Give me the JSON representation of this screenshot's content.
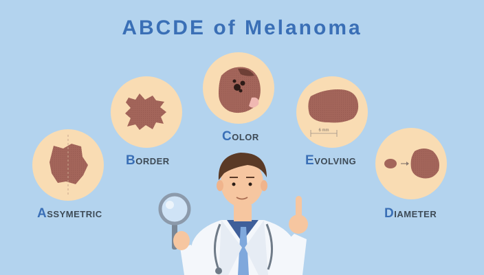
{
  "title": "ABCDE of Melanoma",
  "items": [
    {
      "letter": "A",
      "rest": "SSYMETRIC"
    },
    {
      "letter": "B",
      "rest": "ORDER"
    },
    {
      "letter": "C",
      "rest": "OLOR"
    },
    {
      "letter": "E",
      "rest": "VOLVING"
    },
    {
      "letter": "D",
      "rest": "IAMETER"
    }
  ],
  "measure_label": "6 mm",
  "colors": {
    "background": "#b3d3ee",
    "circle": "#f9dcb3",
    "mole": "#a3655a",
    "title": "#3a6fb6",
    "label": "#3d4a56"
  }
}
